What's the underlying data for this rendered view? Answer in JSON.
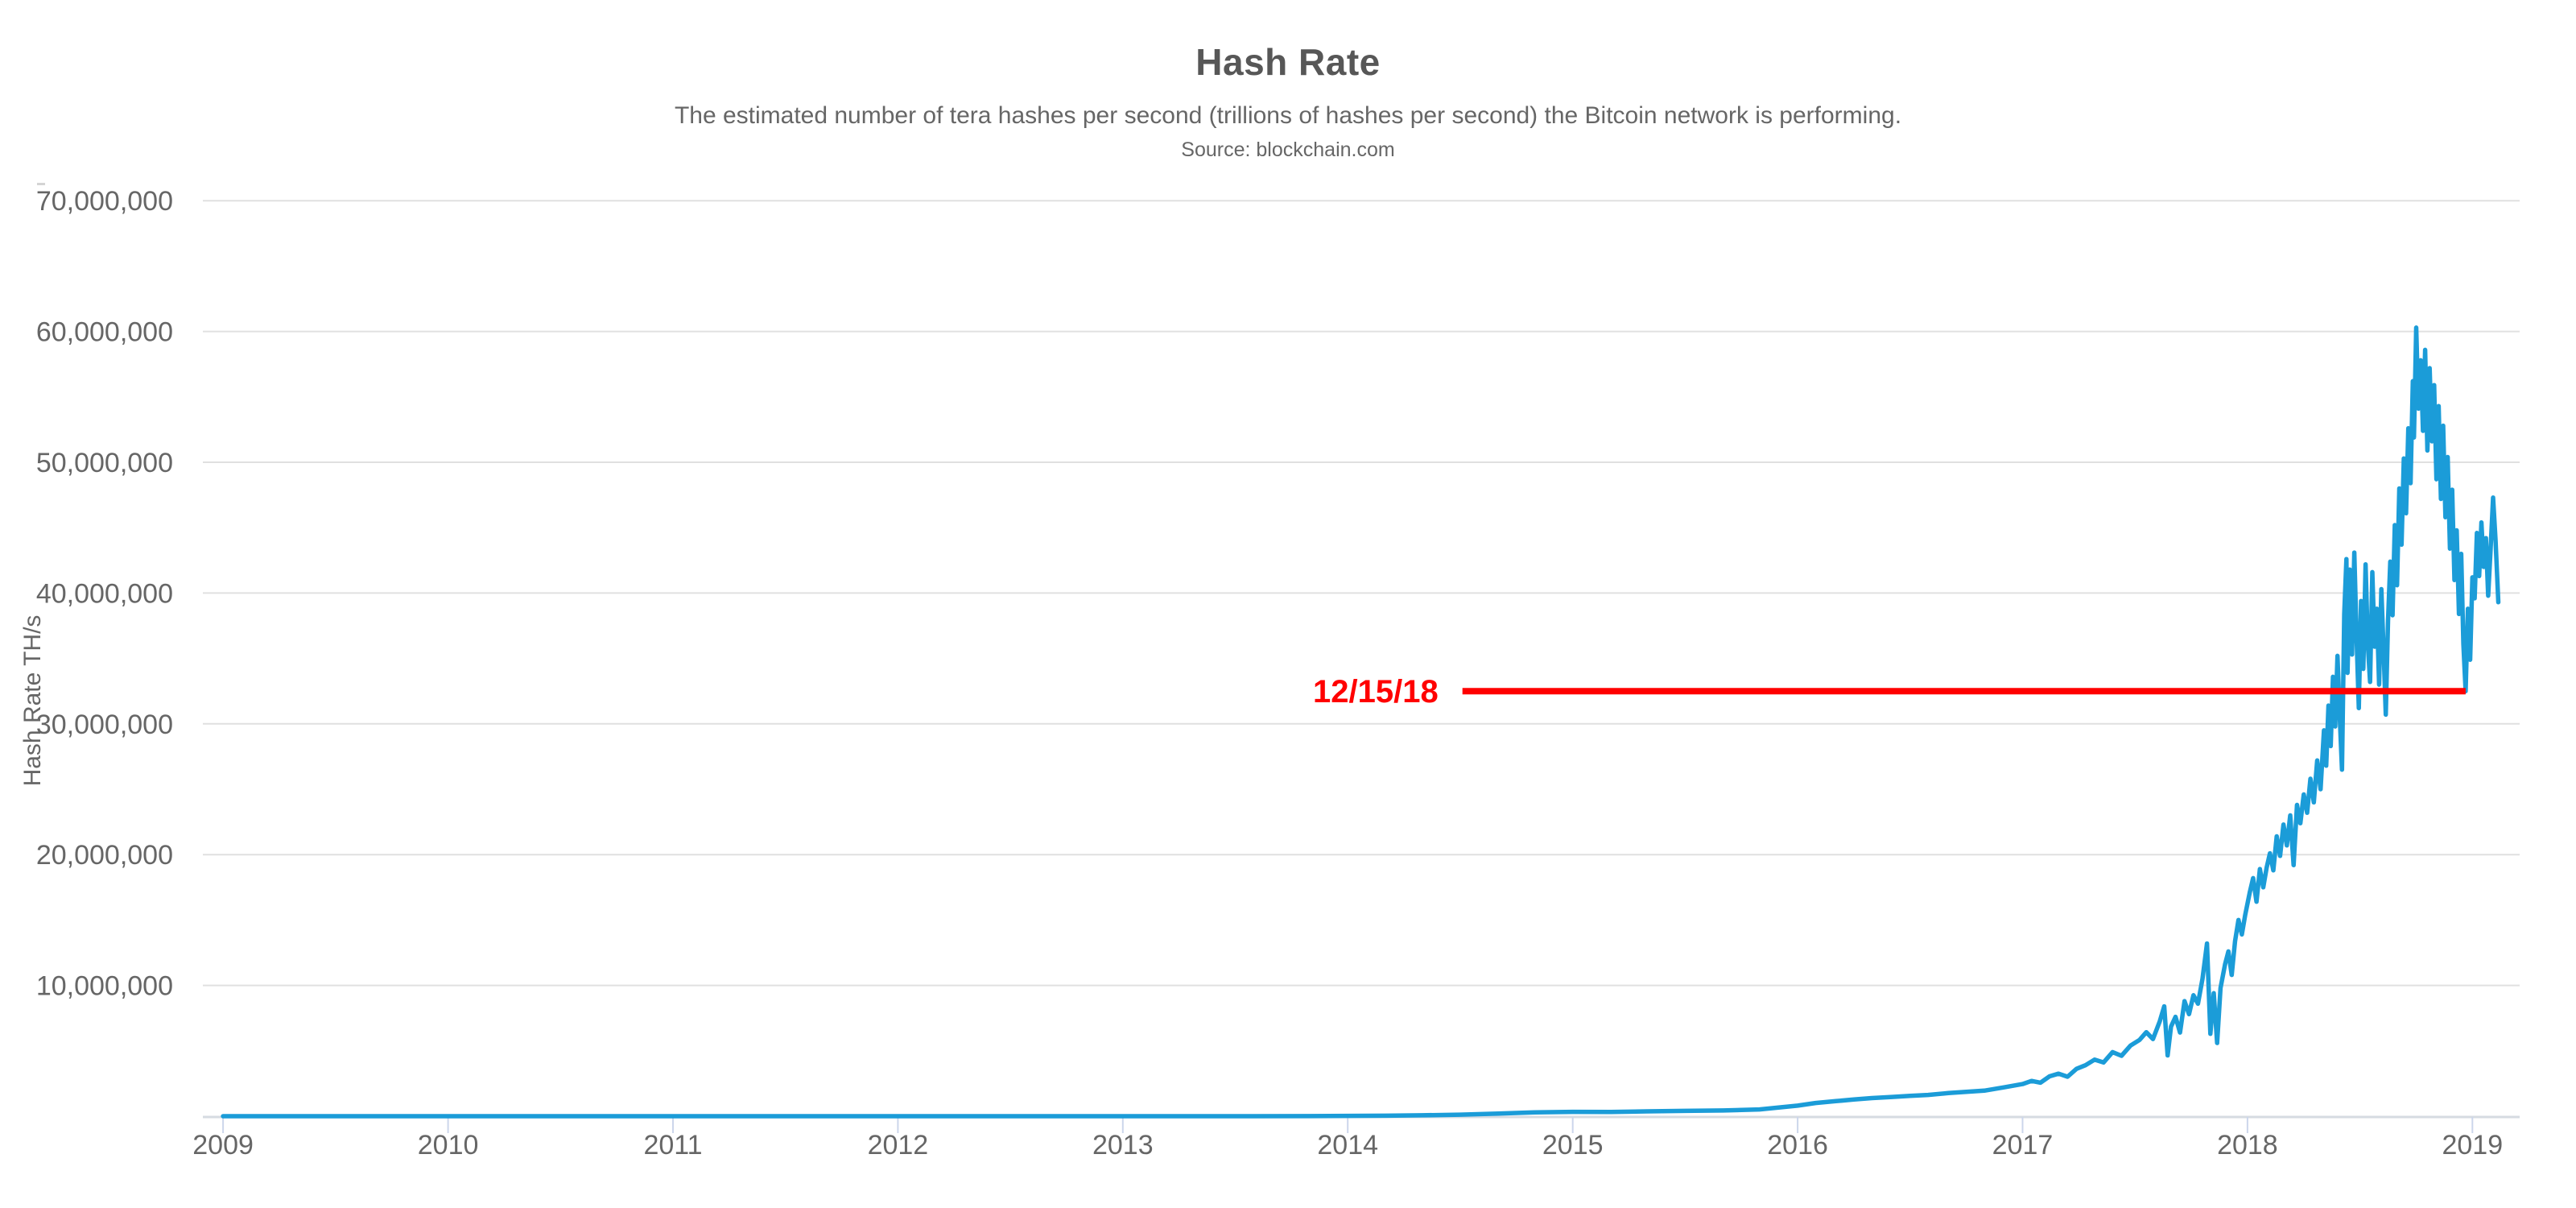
{
  "header": {
    "title": "Hash Rate",
    "subtitle": "The estimated number of tera hashes per second (trillions of hashes per second) the Bitcoin network is performing.",
    "source": "Source: blockchain.com"
  },
  "colors": {
    "line": "#1b9cd8",
    "annotation": "#ff0000",
    "grid": "#e0e0e0",
    "axis_line": "#d6dbe2",
    "tick": "#ccd6eb",
    "text": "#666666",
    "title_text": "#575757"
  },
  "chart_data": {
    "type": "line",
    "title": "Hash Rate",
    "subtitle": "The estimated number of tera hashes per second (trillions of hashes per second) the Bitcoin network is performing.",
    "source": "Source: blockchain.com",
    "xlabel": "",
    "ylabel": "Hash Rate TH/s",
    "y_unit": "TH/s",
    "x_unit": "year",
    "grid": "horizontal",
    "legend": "none",
    "xlim": [
      2008.91,
      2019.21
    ],
    "ylim": [
      0,
      71800000
    ],
    "yticks": [
      {
        "value": 10000000,
        "label": "10,000,000"
      },
      {
        "value": 20000000,
        "label": "20,000,000"
      },
      {
        "value": 30000000,
        "label": "30,000,000"
      },
      {
        "value": 40000000,
        "label": "40,000,000"
      },
      {
        "value": 50000000,
        "label": "50,000,000"
      },
      {
        "value": 60000000,
        "label": "60,000,000"
      },
      {
        "value": 70000000,
        "label": "70,000,000"
      }
    ],
    "xticks": [
      {
        "value": 2009,
        "label": "2009"
      },
      {
        "value": 2010,
        "label": "2010"
      },
      {
        "value": 2011,
        "label": "2011"
      },
      {
        "value": 2012,
        "label": "2012"
      },
      {
        "value": 2013,
        "label": "2013"
      },
      {
        "value": 2014,
        "label": "2014"
      },
      {
        "value": 2015,
        "label": "2015"
      },
      {
        "value": 2016,
        "label": "2016"
      },
      {
        "value": 2017,
        "label": "2017"
      },
      {
        "value": 2018,
        "label": "2018"
      },
      {
        "value": 2019,
        "label": "2019"
      }
    ],
    "annotation": {
      "label": "12/15/18",
      "value": 32500000,
      "line_start_year": 2014.51,
      "line_end_year": 2018.97,
      "color": "#ff0000"
    },
    "series": [
      {
        "name": "Hash Rate",
        "color": "#1b9cd8",
        "points": [
          [
            2009.0,
            0.005
          ],
          [
            2009.5,
            0.02
          ],
          [
            2010.0,
            0.12
          ],
          [
            2010.5,
            1.5
          ],
          [
            2011.0,
            8
          ],
          [
            2011.33,
            13
          ],
          [
            2011.67,
            11
          ],
          [
            2012.0,
            16
          ],
          [
            2012.5,
            19
          ],
          [
            2013.0,
            35
          ],
          [
            2013.33,
            180
          ],
          [
            2013.58,
            700
          ],
          [
            2013.83,
            7000
          ],
          [
            2014.0,
            24000
          ],
          [
            2014.17,
            38000
          ],
          [
            2014.33,
            68000
          ],
          [
            2014.5,
            115000
          ],
          [
            2014.67,
            205000
          ],
          [
            2014.83,
            290000
          ],
          [
            2015.0,
            335000
          ],
          [
            2015.17,
            318000
          ],
          [
            2015.33,
            368000
          ],
          [
            2015.5,
            405000
          ],
          [
            2015.67,
            440000
          ],
          [
            2015.83,
            515000
          ],
          [
            2016.0,
            805000
          ],
          [
            2016.08,
            1010000
          ],
          [
            2016.17,
            1150000
          ],
          [
            2016.25,
            1275000
          ],
          [
            2016.33,
            1385000
          ],
          [
            2016.42,
            1470000
          ],
          [
            2016.5,
            1560000
          ],
          [
            2016.58,
            1625000
          ],
          [
            2016.67,
            1765000
          ],
          [
            2016.75,
            1860000
          ],
          [
            2016.83,
            1955000
          ],
          [
            2016.92,
            2210000
          ],
          [
            2017.0,
            2460000
          ],
          [
            2017.04,
            2700000
          ],
          [
            2017.08,
            2560000
          ],
          [
            2017.12,
            3050000
          ],
          [
            2017.16,
            3250000
          ],
          [
            2017.2,
            3020000
          ],
          [
            2017.24,
            3620000
          ],
          [
            2017.28,
            3900000
          ],
          [
            2017.32,
            4320000
          ],
          [
            2017.36,
            4110000
          ],
          [
            2017.4,
            4900000
          ],
          [
            2017.44,
            4620000
          ],
          [
            2017.48,
            5400000
          ],
          [
            2017.52,
            5830000
          ],
          [
            2017.55,
            6420000
          ],
          [
            2017.58,
            5900000
          ],
          [
            2017.61,
            7250000
          ],
          [
            2017.63,
            8400000
          ],
          [
            2017.645,
            4650000
          ],
          [
            2017.66,
            6850000
          ],
          [
            2017.68,
            7600000
          ],
          [
            2017.7,
            6400000
          ],
          [
            2017.72,
            8800000
          ],
          [
            2017.74,
            7800000
          ],
          [
            2017.76,
            9250000
          ],
          [
            2017.78,
            8600000
          ],
          [
            2017.8,
            10500000
          ],
          [
            2017.82,
            13200000
          ],
          [
            2017.835,
            6300000
          ],
          [
            2017.85,
            9400000
          ],
          [
            2017.865,
            5600000
          ],
          [
            2017.88,
            9800000
          ],
          [
            2017.9,
            11600000
          ],
          [
            2017.915,
            12600000
          ],
          [
            2017.93,
            10800000
          ],
          [
            2017.945,
            13400000
          ],
          [
            2017.96,
            15000000
          ],
          [
            2017.975,
            13900000
          ],
          [
            2017.99,
            15400000
          ],
          [
            2018.01,
            17100000
          ],
          [
            2018.025,
            18200000
          ],
          [
            2018.04,
            16400000
          ],
          [
            2018.055,
            18900000
          ],
          [
            2018.07,
            17500000
          ],
          [
            2018.085,
            19000000
          ],
          [
            2018.1,
            20100000
          ],
          [
            2018.115,
            18800000
          ],
          [
            2018.13,
            21400000
          ],
          [
            2018.145,
            19900000
          ],
          [
            2018.16,
            22300000
          ],
          [
            2018.175,
            20700000
          ],
          [
            2018.19,
            23000000
          ],
          [
            2018.205,
            19200000
          ],
          [
            2018.22,
            23800000
          ],
          [
            2018.235,
            22400000
          ],
          [
            2018.25,
            24600000
          ],
          [
            2018.265,
            23200000
          ],
          [
            2018.28,
            25800000
          ],
          [
            2018.295,
            24000000
          ],
          [
            2018.31,
            27200000
          ],
          [
            2018.325,
            25000000
          ],
          [
            2018.34,
            29500000
          ],
          [
            2018.35,
            26800000
          ],
          [
            2018.36,
            31400000
          ],
          [
            2018.37,
            28300000
          ],
          [
            2018.38,
            33600000
          ],
          [
            2018.39,
            29800000
          ],
          [
            2018.4,
            35200000
          ],
          [
            2018.41,
            30600000
          ],
          [
            2018.42,
            26500000
          ],
          [
            2018.43,
            38400000
          ],
          [
            2018.44,
            42600000
          ],
          [
            2018.445,
            33900000
          ],
          [
            2018.455,
            41800000
          ],
          [
            2018.465,
            35300000
          ],
          [
            2018.475,
            43100000
          ],
          [
            2018.485,
            36700000
          ],
          [
            2018.495,
            31200000
          ],
          [
            2018.505,
            39400000
          ],
          [
            2018.515,
            34200000
          ],
          [
            2018.525,
            42200000
          ],
          [
            2018.535,
            36100000
          ],
          [
            2018.545,
            33200000
          ],
          [
            2018.555,
            41600000
          ],
          [
            2018.565,
            35900000
          ],
          [
            2018.575,
            38800000
          ],
          [
            2018.585,
            33000000
          ],
          [
            2018.595,
            40300000
          ],
          [
            2018.605,
            35600000
          ],
          [
            2018.615,
            30700000
          ],
          [
            2018.625,
            37900000
          ],
          [
            2018.635,
            42400000
          ],
          [
            2018.645,
            38300000
          ],
          [
            2018.655,
            45200000
          ],
          [
            2018.665,
            40600000
          ],
          [
            2018.675,
            48000000
          ],
          [
            2018.685,
            43700000
          ],
          [
            2018.695,
            50300000
          ],
          [
            2018.705,
            46100000
          ],
          [
            2018.715,
            52600000
          ],
          [
            2018.725,
            48400000
          ],
          [
            2018.735,
            56200000
          ],
          [
            2018.74,
            51900000
          ],
          [
            2018.75,
            60300000
          ],
          [
            2018.76,
            54100000
          ],
          [
            2018.77,
            57800000
          ],
          [
            2018.78,
            52400000
          ],
          [
            2018.79,
            58600000
          ],
          [
            2018.8,
            50900000
          ],
          [
            2018.81,
            57200000
          ],
          [
            2018.82,
            51600000
          ],
          [
            2018.83,
            55900000
          ],
          [
            2018.84,
            48700000
          ],
          [
            2018.85,
            54300000
          ],
          [
            2018.86,
            47200000
          ],
          [
            2018.87,
            52800000
          ],
          [
            2018.88,
            45800000
          ],
          [
            2018.89,
            50400000
          ],
          [
            2018.9,
            43400000
          ],
          [
            2018.91,
            47900000
          ],
          [
            2018.92,
            41000000
          ],
          [
            2018.93,
            44800000
          ],
          [
            2018.94,
            38400000
          ],
          [
            2018.95,
            43000000
          ],
          [
            2018.96,
            36100000
          ],
          [
            2018.97,
            32500000
          ],
          [
            2018.98,
            38800000
          ],
          [
            2018.99,
            34900000
          ],
          [
            2019.0,
            41200000
          ],
          [
            2019.01,
            39600000
          ],
          [
            2019.02,
            44600000
          ],
          [
            2019.03,
            41300000
          ],
          [
            2019.04,
            45400000
          ],
          [
            2019.05,
            42000000
          ],
          [
            2019.06,
            44200000
          ],
          [
            2019.07,
            39800000
          ],
          [
            2019.08,
            43100000
          ],
          [
            2019.092,
            47300000
          ],
          [
            2019.103,
            44000000
          ],
          [
            2019.115,
            39300000
          ]
        ]
      }
    ]
  }
}
